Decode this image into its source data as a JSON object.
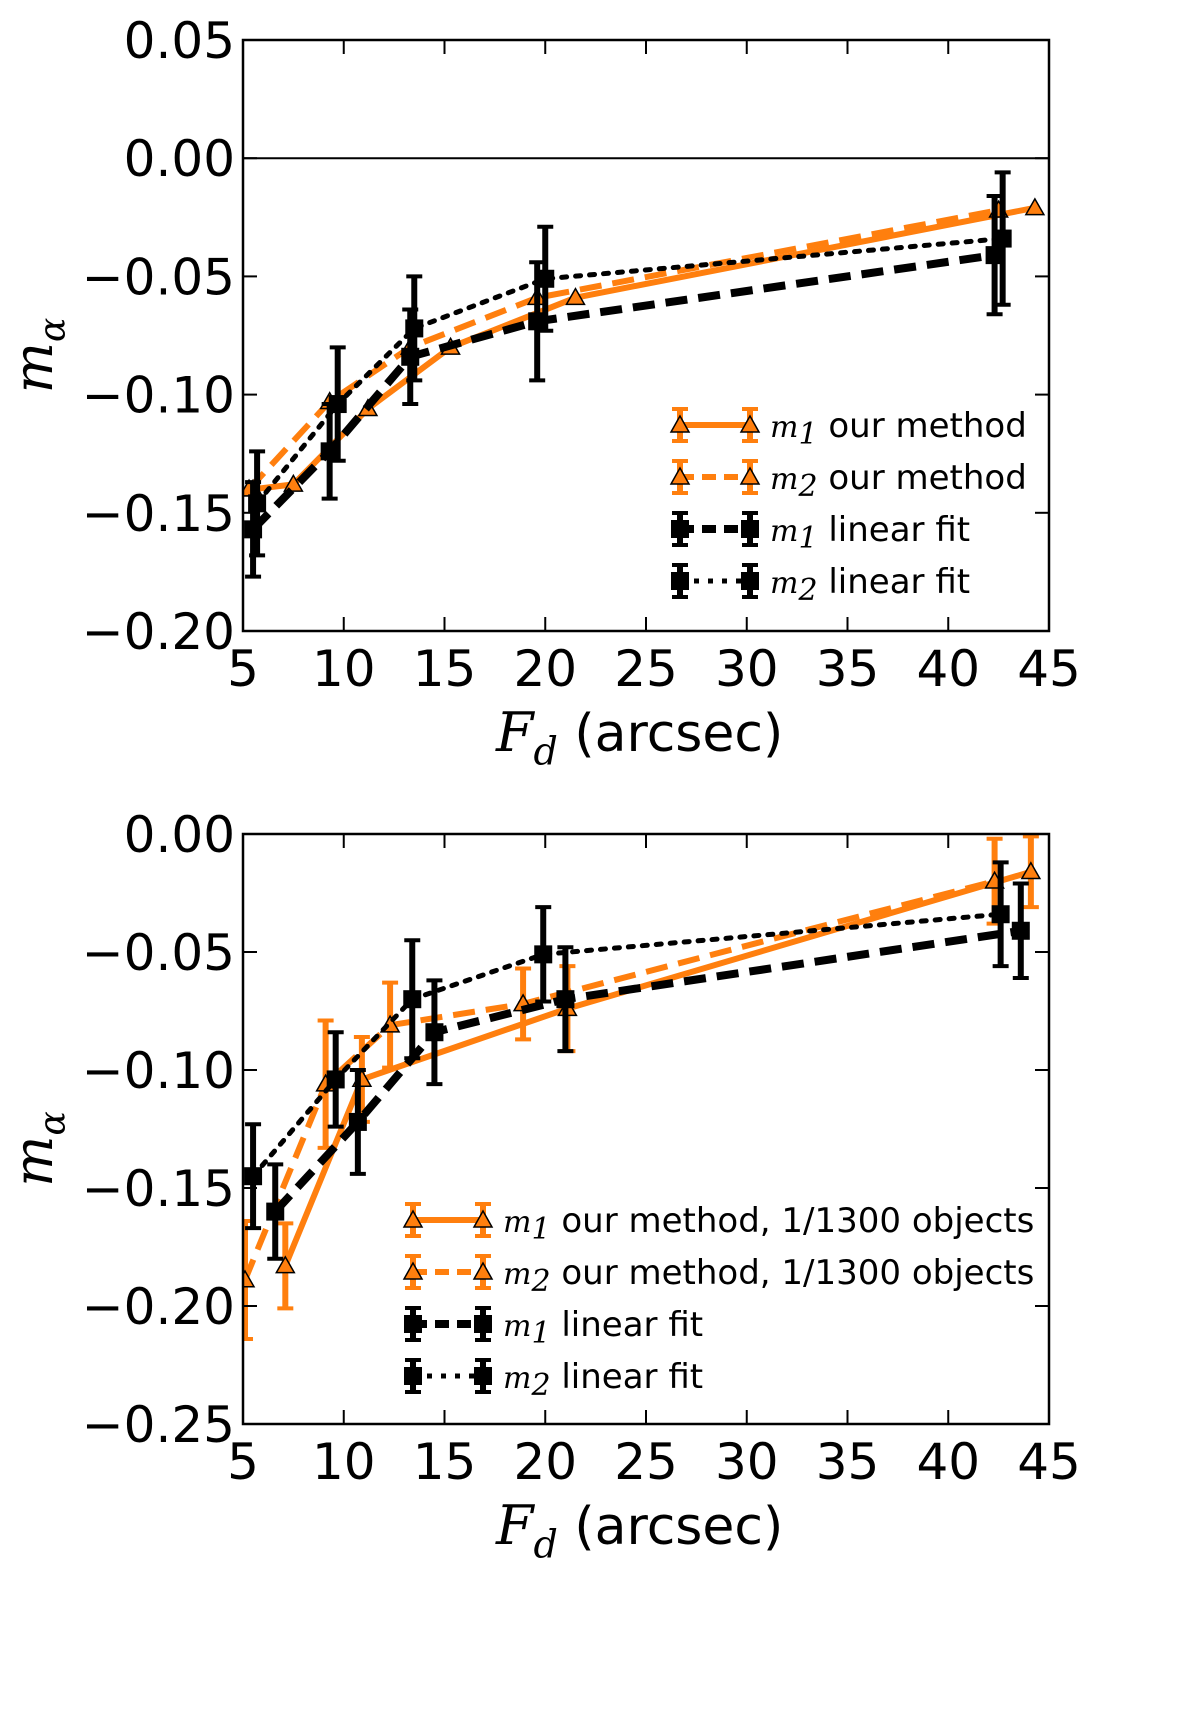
{
  "chart_data": [
    {
      "type": "line",
      "id": "top",
      "xlabel_math": "F",
      "xlabel_sub": "d",
      "xlabel_unit": "(arcsec)",
      "ylabel_math": "m",
      "ylabel_sub": "α",
      "xlim": [
        5,
        45
      ],
      "ylim": [
        -0.2,
        0.05
      ],
      "xticks": [
        5,
        10,
        15,
        20,
        25,
        30,
        35,
        40,
        45
      ],
      "xtick_labels": [
        "5",
        "10",
        "15",
        "20",
        "25",
        "30",
        "35",
        "40",
        "45"
      ],
      "yticks": [
        0.05,
        0.0,
        -0.05,
        -0.1,
        -0.15,
        -0.2
      ],
      "ytick_labels": [
        "0.05",
        "0.00",
        "−0.05",
        "−0.10",
        "−0.15",
        "−0.20"
      ],
      "hline": 0,
      "legend_position": "lower-right",
      "series": [
        {
          "name": "m1 our method",
          "legend_math": "m",
          "legend_sub": "1",
          "legend_text": "our method",
          "color": "#ff7f0e",
          "dash": "solid",
          "width": 6,
          "marker": "triangle",
          "x": [
            5.5,
            7.5,
            11.2,
            15.3,
            21.5,
            44.3
          ],
          "y": [
            -0.14,
            -0.138,
            -0.106,
            -0.08,
            -0.059,
            -0.021
          ],
          "err": null
        },
        {
          "name": "m2 our method",
          "legend_math": "m",
          "legend_sub": "2",
          "legend_text": "our method",
          "color": "#ff7f0e",
          "dash": "dashed",
          "width": 6,
          "marker": "triangle",
          "x": [
            5.3,
            9.3,
            13.3,
            19.6,
            42.5
          ],
          "y": [
            -0.14,
            -0.103,
            -0.08,
            -0.059,
            -0.022
          ],
          "err": null
        },
        {
          "name": "m1 linear fit",
          "legend_math": "m",
          "legend_sub": "1",
          "legend_text": "linear fit",
          "color": "#000000",
          "dash": "dashed",
          "width": 8,
          "marker": "square",
          "x": [
            5.5,
            9.3,
            13.3,
            19.6,
            42.3
          ],
          "y": [
            -0.157,
            -0.124,
            -0.084,
            -0.069,
            -0.041
          ],
          "err": [
            0.02,
            0.02,
            0.02,
            0.025,
            0.025
          ]
        },
        {
          "name": "m2 linear fit",
          "legend_math": "m",
          "legend_sub": "2",
          "legend_text": "linear fit",
          "color": "#000000",
          "dash": "dotted",
          "width": 5,
          "marker": "square",
          "x": [
            5.7,
            9.7,
            13.5,
            20.0,
            42.7
          ],
          "y": [
            -0.146,
            -0.104,
            -0.072,
            -0.051,
            -0.034
          ],
          "err": [
            0.022,
            0.024,
            0.022,
            0.022,
            0.028
          ]
        }
      ]
    },
    {
      "type": "line",
      "id": "bottom",
      "xlabel_math": "F",
      "xlabel_sub": "d",
      "xlabel_unit": "(arcsec)",
      "ylabel_math": "m",
      "ylabel_sub": "α",
      "xlim": [
        5,
        45
      ],
      "ylim": [
        -0.25,
        0.0
      ],
      "xticks": [
        5,
        10,
        15,
        20,
        25,
        30,
        35,
        40,
        45
      ],
      "xtick_labels": [
        "5",
        "10",
        "15",
        "20",
        "25",
        "30",
        "35",
        "40",
        "45"
      ],
      "yticks": [
        0.0,
        -0.05,
        -0.1,
        -0.15,
        -0.2,
        -0.25
      ],
      "ytick_labels": [
        "0.00",
        "−0.05",
        "−0.10",
        "−0.15",
        "−0.20",
        "−0.25"
      ],
      "hline": null,
      "legend_position": "lower-right",
      "series": [
        {
          "name": "m1 our method, 1/1300 objects",
          "legend_math": "m",
          "legend_sub": "1",
          "legend_text": "our method, 1/1300 objects",
          "color": "#ff7f0e",
          "dash": "solid",
          "width": 6,
          "marker": "triangle",
          "x": [
            7.1,
            10.9,
            21.1,
            44.1
          ],
          "y": [
            -0.183,
            -0.104,
            -0.074,
            -0.016
          ],
          "err": [
            0.018,
            0.018,
            0.018,
            0.015
          ]
        },
        {
          "name": "m2 our method, 1/1300 objects",
          "legend_math": "m",
          "legend_sub": "2",
          "legend_text": "our method, 1/1300 objects",
          "color": "#ff7f0e",
          "dash": "dashed",
          "width": 6,
          "marker": "triangle",
          "x": [
            5.1,
            9.1,
            12.3,
            18.9,
            42.3
          ],
          "y": [
            -0.189,
            -0.106,
            -0.081,
            -0.072,
            -0.02
          ],
          "err": [
            0.025,
            0.027,
            0.018,
            0.015,
            0.018
          ]
        },
        {
          "name": "m1 linear fit",
          "legend_math": "m",
          "legend_sub": "1",
          "legend_text": "linear fit",
          "color": "#000000",
          "dash": "dashed",
          "width": 8,
          "marker": "square",
          "x": [
            6.6,
            10.7,
            14.5,
            21.0,
            43.6
          ],
          "y": [
            -0.16,
            -0.122,
            -0.084,
            -0.07,
            -0.041
          ],
          "err": [
            0.02,
            0.022,
            0.022,
            0.022,
            0.02
          ]
        },
        {
          "name": "m2 linear fit",
          "legend_math": "m",
          "legend_sub": "2",
          "legend_text": "linear fit",
          "color": "#000000",
          "dash": "dotted",
          "width": 5,
          "marker": "square",
          "x": [
            5.5,
            9.6,
            13.4,
            19.9,
            42.6
          ],
          "y": [
            -0.145,
            -0.104,
            -0.07,
            -0.051,
            -0.034
          ],
          "err": [
            0.022,
            0.02,
            0.025,
            0.02,
            0.022
          ]
        }
      ]
    }
  ]
}
